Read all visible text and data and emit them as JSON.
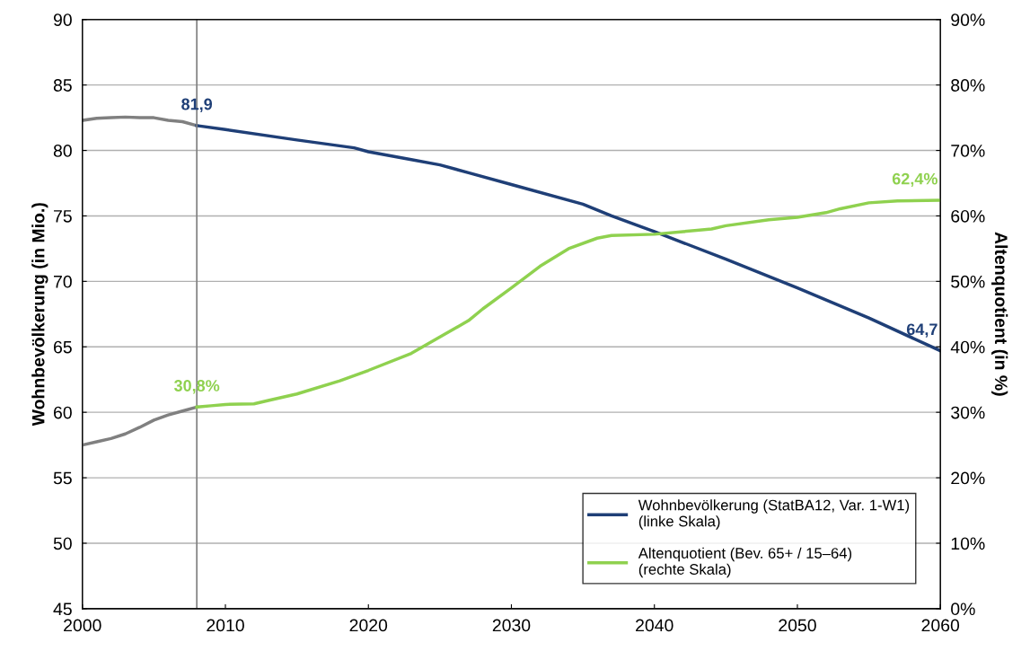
{
  "chart_data": {
    "type": "line",
    "ylabel": "Wohnbevölkerung (in Mio.)",
    "y2label": "Altenquotient (in %)",
    "xlim": [
      2000,
      2060
    ],
    "xticks": [
      2000,
      2010,
      2020,
      2030,
      2040,
      2050,
      2060
    ],
    "ylim": [
      45,
      90
    ],
    "yticks": [
      45,
      50,
      55,
      60,
      65,
      70,
      75,
      80,
      85,
      90
    ],
    "y2lim": [
      0,
      90
    ],
    "y2ticks": [
      {
        "value": 0,
        "label": "0%"
      },
      {
        "value": 10,
        "label": "10%"
      },
      {
        "value": 20,
        "label": "20%"
      },
      {
        "value": 30,
        "label": "30%"
      },
      {
        "value": 40,
        "label": "40%"
      },
      {
        "value": 50,
        "label": "50%"
      },
      {
        "value": 60,
        "label": "60%"
      },
      {
        "value": 70,
        "label": "70%"
      },
      {
        "value": 80,
        "label": "80%"
      },
      {
        "value": 90,
        "label": "90%"
      }
    ],
    "grid": "y",
    "legend": "bottom right",
    "series": [
      {
        "color": "#808080",
        "x": [
          2000,
          2001,
          2002,
          2003,
          2004,
          2005,
          2006,
          2007,
          2008
        ],
        "values": [
          82.3,
          82.45,
          82.5,
          82.55,
          82.5,
          82.5,
          82.3,
          82.2,
          81.9
        ]
      },
      {
        "name": "Wohnbevölkerung (StatBA12, Var. 1-W1)\n(linke Skala)",
        "color": "#1f3f77",
        "x": [
          2008,
          2010,
          2015,
          2019,
          2020,
          2023,
          2025,
          2027,
          2030,
          2035,
          2037,
          2040,
          2045,
          2050,
          2055,
          2060
        ],
        "values": [
          81.9,
          81.6,
          80.8,
          80.2,
          79.9,
          79.3,
          78.9,
          78.3,
          77.4,
          75.9,
          75.0,
          73.8,
          71.7,
          69.5,
          67.2,
          64.7
        ]
      },
      {
        "color": "#808080",
        "axis": "y2",
        "x": [
          2000,
          2001,
          2002,
          2003,
          2004,
          2005,
          2006,
          2007,
          2008
        ],
        "values": [
          25.0,
          25.5,
          26.0,
          26.7,
          27.7,
          28.8,
          29.6,
          30.2,
          30.8
        ]
      },
      {
        "name": "Altenquotient (Bev. 65+ / 15–64)\n(rechte Skala)",
        "color": "#8fd14f",
        "axis": "y2",
        "x": [
          2008,
          2009,
          2010,
          2012,
          2013,
          2015,
          2018,
          2020,
          2023,
          2025,
          2027,
          2028,
          2030,
          2032,
          2034,
          2036,
          2037,
          2040,
          2042,
          2044,
          2045,
          2048,
          2050,
          2052,
          2053,
          2055,
          2057,
          2060
        ],
        "values": [
          30.8,
          31.0,
          31.2,
          31.3,
          31.8,
          32.8,
          34.8,
          36.4,
          39.0,
          41.5,
          44.0,
          45.8,
          49.0,
          52.3,
          55.0,
          56.6,
          57.0,
          57.2,
          57.6,
          58.0,
          58.5,
          59.4,
          59.8,
          60.5,
          61.1,
          62.0,
          62.3,
          62.4
        ]
      }
    ],
    "ref_lines": [
      {
        "axis": "x",
        "value": 2008,
        "color": "#808080"
      }
    ],
    "annotations": [
      {
        "text": "81,9",
        "x": 2008,
        "y": 81.9
      },
      {
        "text": "64,7",
        "x": 2060,
        "y": 64.7
      },
      "30,8%",
      "62,4%"
    ]
  }
}
